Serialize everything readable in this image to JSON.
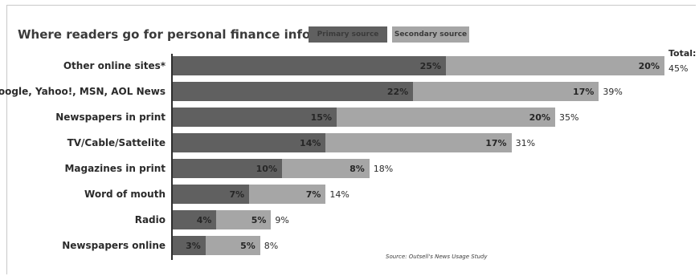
{
  "legend": {
    "primary": "Primary source",
    "secondary": "Secondary source"
  },
  "total_label": "Total:",
  "source": "Source: Outsell's News Usage Study",
  "colors": {
    "primary": "#606060",
    "secondary": "#a6a6a6"
  },
  "chart_data": {
    "type": "bar",
    "orientation": "horizontal",
    "stacked": true,
    "title": "Where readers go for personal finance information",
    "categories": [
      "Other online sites*",
      "Google, Yahoo!, MSN, AOL News",
      "Newspapers in print",
      "TV/Cable/Sattelite",
      "Magazines in print",
      "Word of mouth",
      "Radio",
      "Newspapers online"
    ],
    "series": [
      {
        "name": "Primary source",
        "values": [
          25,
          22,
          15,
          14,
          10,
          7,
          4,
          3
        ]
      },
      {
        "name": "Secondary source",
        "values": [
          20,
          17,
          20,
          17,
          8,
          7,
          5,
          5
        ]
      }
    ],
    "totals": [
      45,
      39,
      35,
      31,
      18,
      14,
      9,
      8
    ],
    "unit": "%",
    "xlim": [
      0,
      45
    ],
    "grid": false
  }
}
